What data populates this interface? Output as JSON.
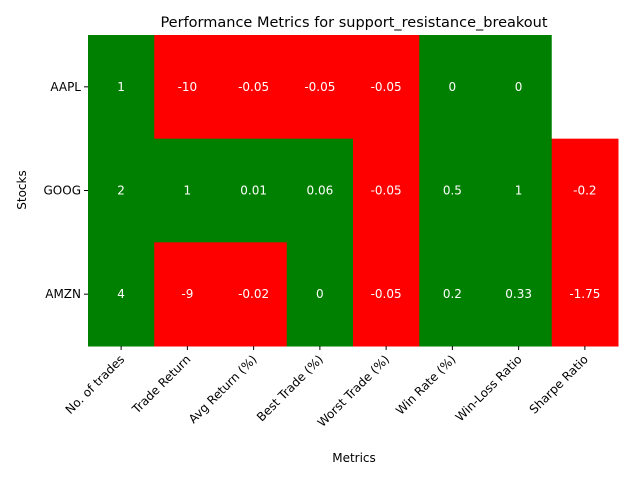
{
  "chart_data": {
    "type": "heatmap",
    "title": "Performance Metrics for support_resistance_breakout",
    "xlabel": "Metrics",
    "ylabel": "Stocks",
    "columns": [
      "No. of trades",
      "Trade Return",
      "Avg Return (%)",
      "Best Trade (%)",
      "Worst Trade (%)",
      "Win Rate (%)",
      "Win-Loss Ratio",
      "Sharpe Ratio"
    ],
    "rows": [
      "AAPL",
      "GOOG",
      "AMZN"
    ],
    "cells": [
      [
        {
          "label": "1",
          "color": "green"
        },
        {
          "label": "-10",
          "color": "red"
        },
        {
          "label": "-0.05",
          "color": "red"
        },
        {
          "label": "-0.05",
          "color": "red"
        },
        {
          "label": "-0.05",
          "color": "red"
        },
        {
          "label": "0",
          "color": "green"
        },
        {
          "label": "0",
          "color": "green"
        },
        {
          "label": "",
          "color": "white"
        }
      ],
      [
        {
          "label": "2",
          "color": "green"
        },
        {
          "label": "1",
          "color": "green"
        },
        {
          "label": "0.01",
          "color": "green"
        },
        {
          "label": "0.06",
          "color": "green"
        },
        {
          "label": "-0.05",
          "color": "red"
        },
        {
          "label": "0.5",
          "color": "green"
        },
        {
          "label": "1",
          "color": "green"
        },
        {
          "label": "-0.2",
          "color": "red"
        }
      ],
      [
        {
          "label": "4",
          "color": "green"
        },
        {
          "label": "-9",
          "color": "red"
        },
        {
          "label": "-0.02",
          "color": "red"
        },
        {
          "label": "0",
          "color": "green"
        },
        {
          "label": "-0.05",
          "color": "red"
        },
        {
          "label": "0.2",
          "color": "green"
        },
        {
          "label": "0.33",
          "color": "green"
        },
        {
          "label": "-1.75",
          "color": "red"
        }
      ]
    ],
    "colors": {
      "green": "#008000",
      "red": "#ff0000",
      "white": "#ffffff"
    },
    "colorbar": false
  }
}
